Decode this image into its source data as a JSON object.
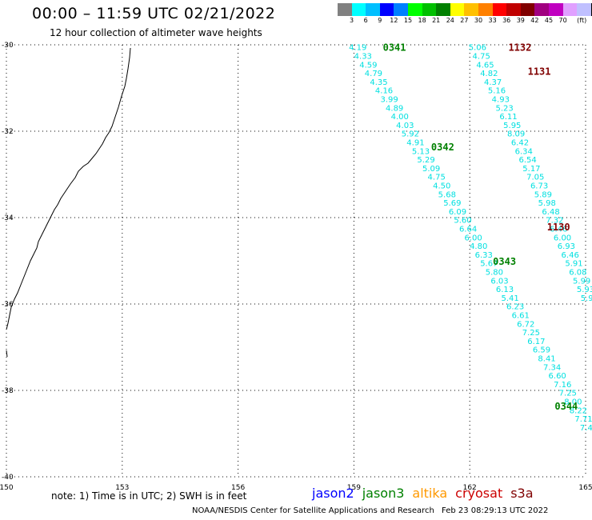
{
  "header": {
    "title": "00:00 – 11:59 UTC 02/21/2022",
    "subtitle": "12 hour collection of altimeter wave heights"
  },
  "colorbar": {
    "colors": [
      "#808080",
      "#00ffff",
      "#00bfff",
      "#0000ff",
      "#0080ff",
      "#00ff00",
      "#00c000",
      "#008000",
      "#ffff00",
      "#ffc000",
      "#ff8000",
      "#ff0000",
      "#c00000",
      "#800000",
      "#a00080",
      "#c000c0",
      "#e0a0ff",
      "#c0c0ff",
      "#000000"
    ],
    "labels": [
      "3",
      "6",
      "9",
      "12",
      "15",
      "18",
      "21",
      "24",
      "27",
      "30",
      "33",
      "36",
      "39",
      "42",
      "45",
      "70",
      "(ft)"
    ]
  },
  "map": {
    "lon_range": [
      150,
      165
    ],
    "lat_range": [
      -30,
      -40
    ],
    "lon_ticks": [
      "150",
      "153",
      "156",
      "159",
      "162",
      "165"
    ],
    "lat_ticks": [
      "-30",
      "-32",
      "-34",
      "-36",
      "-38",
      "-40"
    ],
    "track_color": "#00e0e0",
    "pass_label_color": "#008000",
    "pass_label_color_cryosat": "#800000",
    "tracks": [
      {
        "name": "jason3 descending",
        "start_lon": 159.1,
        "start_lat": -30.05,
        "dlon": 0.136,
        "dlat": -0.2,
        "values": [
          "4.19",
          "4.33",
          "4.59",
          "4.79",
          "4.35",
          "4.16",
          "3.99",
          "4.89",
          "4.00",
          "4.03",
          "5.92",
          "4.91",
          "5.13",
          "5.29",
          "5.09",
          "4.75",
          "4.50",
          "5.68",
          "5.69",
          "6.09",
          "5.60",
          "6.64",
          "6.00",
          "4.80",
          "6.33",
          "5.67",
          "5.80",
          "6.03",
          "6.13",
          "5.41",
          "6.23",
          "6.61",
          "6.72",
          "7.25",
          "6.17",
          "6.59",
          "8.41",
          "7.34",
          "6.60",
          "7.16",
          "7.25",
          "8.00",
          "8.22",
          "7.71",
          "7.44",
          "7.95",
          "7.06",
          "7.51",
          "7.25",
          "8.98",
          "9.03",
          "8.7",
          "8."
        ]
      },
      {
        "name": "cryosat descending",
        "start_lon": 162.2,
        "start_lat": -30.05,
        "dlon": 0.1,
        "dlat": -0.2,
        "values": [
          "5.06",
          "4.75",
          "4.65",
          "4.82",
          "4.37",
          "5.16",
          "4.93",
          "5.23",
          "6.11",
          "5.95",
          "8.09",
          "6.42",
          "6.34",
          "6.54",
          "5.17",
          "7.05",
          "6.73",
          "5.89",
          "5.98",
          "6.48",
          "7.32",
          "6.46",
          "6.00",
          "6.93",
          "6.46",
          "5.91",
          "6.08",
          "5.99",
          "5.93",
          "5.92",
          "5.76",
          "6.53",
          "6.95",
          "7.45",
          "6.80",
          "7.90",
          "6.33",
          "6.53",
          "6.54",
          "6.0",
          "6.0"
        ]
      }
    ],
    "pass_labels": [
      {
        "text": "0341",
        "lon": 159.75,
        "lat": -30.05,
        "sat": "jason3"
      },
      {
        "text": "0342",
        "lon": 161.0,
        "lat": -32.35,
        "sat": "jason3"
      },
      {
        "text": "0343",
        "lon": 162.6,
        "lat": -35.0,
        "sat": "jason3"
      },
      {
        "text": "0344",
        "lon": 164.2,
        "lat": -38.35,
        "sat": "jason3"
      },
      {
        "text": "1132",
        "lon": 163.0,
        "lat": -30.05,
        "sat": "cryosat"
      },
      {
        "text": "1131",
        "lon": 163.5,
        "lat": -30.6,
        "sat": "cryosat"
      },
      {
        "text": "1130",
        "lon": 164.0,
        "lat": -34.2,
        "sat": "cryosat"
      }
    ]
  },
  "footer": {
    "note": "note:  1) Time is in UTC; 2) SWH is in feet",
    "credit": "NOAA/NESDIS Center for Satellite Applications and Research",
    "stamp": "Feb 23 08:29:13 UTC 2022"
  },
  "legend": [
    {
      "label": "jason2",
      "color": "#0000ff"
    },
    {
      "label": "jason3",
      "color": "#008000"
    },
    {
      "label": "altika",
      "color": "#ff9900"
    },
    {
      "label": "cryosat",
      "color": "#cc0000"
    },
    {
      "label": "s3a",
      "color": "#800000"
    }
  ]
}
